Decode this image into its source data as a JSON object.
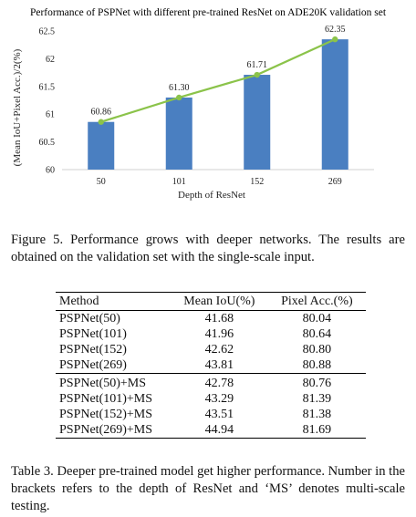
{
  "chart_data": {
    "type": "bar",
    "title": "Performance of PSPNet with different pre-trained ResNet on ADE20K validation set",
    "xlabel": "Depth of ResNet",
    "ylabel": "(Mean IoU+Pixel Acc.)/2(%)",
    "categories": [
      "50",
      "101",
      "152",
      "269"
    ],
    "values": [
      60.86,
      61.3,
      61.71,
      62.35
    ],
    "value_labels": [
      "60.86",
      "61.30",
      "61.71",
      "62.35"
    ],
    "ylim": [
      60,
      62.5
    ],
    "yticks": [
      60,
      60.5,
      61,
      61.5,
      62,
      62.5
    ],
    "ytick_labels": [
      "60",
      "60.5",
      "61",
      "61.5",
      "62",
      "62.5"
    ],
    "grid": false,
    "bar_color": "#4a7fc1",
    "line_color": "#8bc34a",
    "overlay_line": true
  },
  "figure_caption": "Figure 5. Performance grows with deeper networks. The results are obtained on the validation set with the single-scale input.",
  "table": {
    "headers": [
      "Method",
      "Mean IoU(%)",
      "Pixel Acc.(%)"
    ],
    "single_scale": [
      {
        "method": "PSPNet(50)",
        "miou": "41.68",
        "pixacc": "80.04",
        "bold": false
      },
      {
        "method": "PSPNet(101)",
        "miou": "41.96",
        "pixacc": "80.64",
        "bold": false
      },
      {
        "method": "PSPNet(152)",
        "miou": "42.62",
        "pixacc": "80.80",
        "bold": false
      },
      {
        "method": "PSPNet(269)",
        "miou": "43.81",
        "pixacc": "80.88",
        "bold": true
      }
    ],
    "multi_scale": [
      {
        "method": "PSPNet(50)+MS",
        "miou": "42.78",
        "pixacc": "80.76",
        "bold": false
      },
      {
        "method": "PSPNet(101)+MS",
        "miou": "43.29",
        "pixacc": "81.39",
        "bold": false
      },
      {
        "method": "PSPNet(152)+MS",
        "miou": "43.51",
        "pixacc": "81.38",
        "bold": false
      },
      {
        "method": "PSPNet(269)+MS",
        "miou": "44.94",
        "pixacc": "81.69",
        "bold": true
      }
    ]
  },
  "table_caption": "Table 3. Deeper pre-trained model get higher performance. Number in the brackets refers to the depth of ResNet and ‘MS’ denotes multi-scale testing."
}
